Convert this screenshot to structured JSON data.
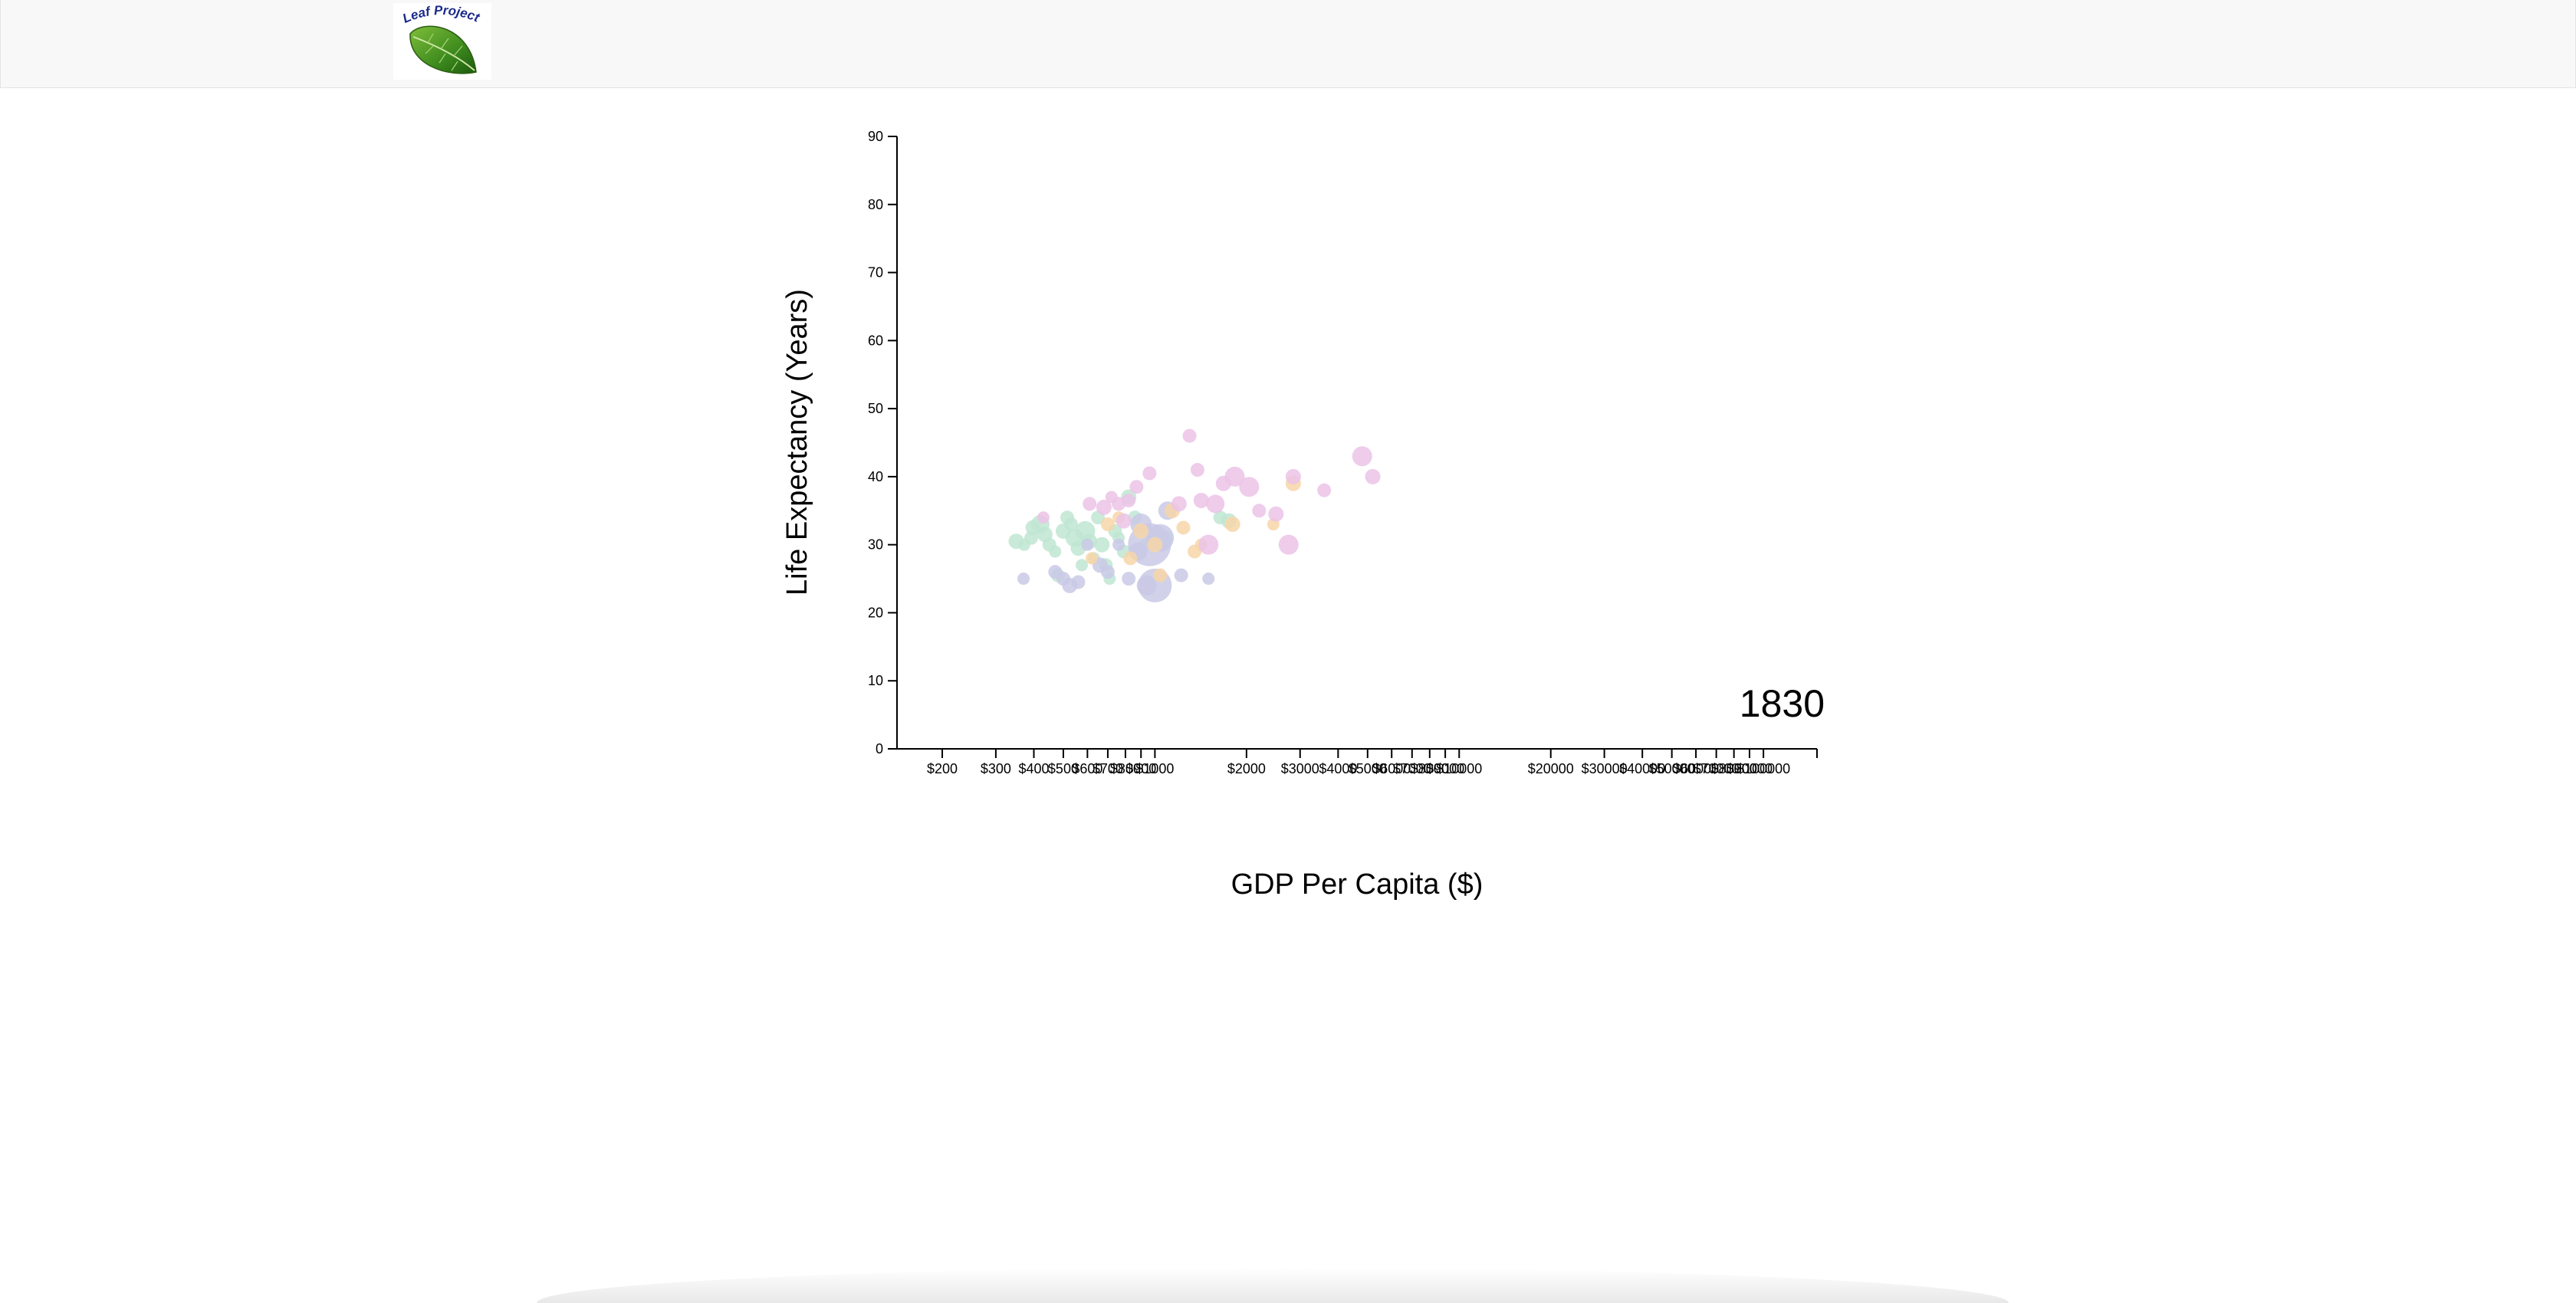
{
  "logo": {
    "text": "Leaf Project"
  },
  "chart_data": {
    "type": "scatter",
    "title": "",
    "year_label": "1830",
    "xlabel": "GDP Per Capita ($)",
    "ylabel": "Life Expectancy (Years)",
    "x_scale": "log",
    "xlim": [
      142,
      150000
    ],
    "ylim": [
      0,
      90
    ],
    "y_ticks": [
      0,
      10,
      20,
      30,
      40,
      50,
      60,
      70,
      80,
      90
    ],
    "x_ticks": [
      200,
      300,
      400,
      500,
      600,
      700,
      800,
      900,
      1000,
      2000,
      3000,
      4000,
      5000,
      6000,
      7000,
      8000,
      9000,
      10000,
      20000,
      30000,
      40000,
      50000,
      60000,
      70000,
      80000,
      90000,
      100000
    ],
    "x_tick_labels": [
      "$200",
      "$300",
      "$400",
      "$500",
      "$600",
      "$700",
      "$800",
      "$900",
      "$1000",
      "$2000",
      "$3000",
      "$4000",
      "$5000",
      "$6000",
      "$7000",
      "$8000",
      "$9000",
      "$10000",
      "$20000",
      "$30000",
      "$40000",
      "$50000",
      "$60000",
      "$70000",
      "$80000",
      "$90000",
      "$100000"
    ],
    "grid": false,
    "colors": {
      "africa": "#bfe6d2",
      "asia": "#c9c9e6",
      "americas": "#f7d6a8",
      "europe": "#ebc3e6",
      "axis": "#000000"
    },
    "series": [
      {
        "color_key": "africa",
        "points": [
          {
            "x": 350,
            "y": 30.5,
            "r": 10
          },
          {
            "x": 372,
            "y": 30,
            "r": 8
          },
          {
            "x": 392,
            "y": 31,
            "r": 9
          },
          {
            "x": 398,
            "y": 32.5,
            "r": 10
          },
          {
            "x": 420,
            "y": 33,
            "r": 12
          },
          {
            "x": 435,
            "y": 31.5,
            "r": 10
          },
          {
            "x": 450,
            "y": 30,
            "r": 9
          },
          {
            "x": 470,
            "y": 29,
            "r": 8
          },
          {
            "x": 480,
            "y": 25.5,
            "r": 9
          },
          {
            "x": 500,
            "y": 32,
            "r": 10
          },
          {
            "x": 515,
            "y": 34,
            "r": 9
          },
          {
            "x": 530,
            "y": 33,
            "r": 9
          },
          {
            "x": 545,
            "y": 31,
            "r": 12
          },
          {
            "x": 560,
            "y": 29.5,
            "r": 10
          },
          {
            "x": 575,
            "y": 27,
            "r": 8
          },
          {
            "x": 590,
            "y": 32,
            "r": 13
          },
          {
            "x": 610,
            "y": 30.5,
            "r": 10
          },
          {
            "x": 630,
            "y": 28,
            "r": 8
          },
          {
            "x": 650,
            "y": 34,
            "r": 9
          },
          {
            "x": 670,
            "y": 30,
            "r": 10
          },
          {
            "x": 690,
            "y": 27,
            "r": 9
          },
          {
            "x": 710,
            "y": 25,
            "r": 8
          },
          {
            "x": 740,
            "y": 32,
            "r": 9
          },
          {
            "x": 760,
            "y": 31,
            "r": 8
          },
          {
            "x": 790,
            "y": 29,
            "r": 9
          },
          {
            "x": 820,
            "y": 37,
            "r": 10
          },
          {
            "x": 860,
            "y": 34,
            "r": 9
          },
          {
            "x": 930,
            "y": 30,
            "r": 8
          },
          {
            "x": 1080,
            "y": 31,
            "r": 10
          },
          {
            "x": 1640,
            "y": 34,
            "r": 9
          },
          {
            "x": 1750,
            "y": 33.5,
            "r": 10
          }
        ]
      },
      {
        "color_key": "asia",
        "points": [
          {
            "x": 370,
            "y": 25,
            "r": 8
          },
          {
            "x": 470,
            "y": 26,
            "r": 9
          },
          {
            "x": 500,
            "y": 25,
            "r": 9
          },
          {
            "x": 525,
            "y": 24,
            "r": 10
          },
          {
            "x": 560,
            "y": 24.5,
            "r": 9
          },
          {
            "x": 600,
            "y": 30,
            "r": 8
          },
          {
            "x": 660,
            "y": 27,
            "r": 10
          },
          {
            "x": 700,
            "y": 26,
            "r": 9
          },
          {
            "x": 760,
            "y": 30,
            "r": 8
          },
          {
            "x": 820,
            "y": 25,
            "r": 9
          },
          {
            "x": 880,
            "y": 29,
            "r": 12
          },
          {
            "x": 900,
            "y": 33,
            "r": 14
          },
          {
            "x": 940,
            "y": 24,
            "r": 13
          },
          {
            "x": 960,
            "y": 30,
            "r": 28
          },
          {
            "x": 1000,
            "y": 24,
            "r": 22
          },
          {
            "x": 1040,
            "y": 31,
            "r": 18
          },
          {
            "x": 1100,
            "y": 35,
            "r": 12
          },
          {
            "x": 1220,
            "y": 25.5,
            "r": 9
          },
          {
            "x": 1500,
            "y": 25,
            "r": 8
          }
        ]
      },
      {
        "color_key": "americas",
        "points": [
          {
            "x": 620,
            "y": 28,
            "r": 8
          },
          {
            "x": 700,
            "y": 33,
            "r": 9
          },
          {
            "x": 760,
            "y": 34,
            "r": 8
          },
          {
            "x": 830,
            "y": 28,
            "r": 9
          },
          {
            "x": 900,
            "y": 32,
            "r": 10
          },
          {
            "x": 1000,
            "y": 30,
            "r": 10
          },
          {
            "x": 1040,
            "y": 25.5,
            "r": 9
          },
          {
            "x": 1140,
            "y": 35,
            "r": 10
          },
          {
            "x": 1240,
            "y": 32.5,
            "r": 9
          },
          {
            "x": 1350,
            "y": 29,
            "r": 9
          },
          {
            "x": 1420,
            "y": 30,
            "r": 8
          },
          {
            "x": 1800,
            "y": 33,
            "r": 10
          },
          {
            "x": 2450,
            "y": 33,
            "r": 8
          },
          {
            "x": 2850,
            "y": 39,
            "r": 10
          }
        ]
      },
      {
        "color_key": "europe",
        "points": [
          {
            "x": 430,
            "y": 34,
            "r": 8
          },
          {
            "x": 610,
            "y": 36,
            "r": 9
          },
          {
            "x": 680,
            "y": 35.5,
            "r": 10
          },
          {
            "x": 720,
            "y": 37,
            "r": 8
          },
          {
            "x": 760,
            "y": 36,
            "r": 9
          },
          {
            "x": 790,
            "y": 33.5,
            "r": 10
          },
          {
            "x": 820,
            "y": 36.5,
            "r": 9
          },
          {
            "x": 870,
            "y": 38.5,
            "r": 9
          },
          {
            "x": 960,
            "y": 40.5,
            "r": 9
          },
          {
            "x": 1200,
            "y": 36,
            "r": 10
          },
          {
            "x": 1300,
            "y": 46,
            "r": 9
          },
          {
            "x": 1380,
            "y": 41,
            "r": 9
          },
          {
            "x": 1420,
            "y": 36.5,
            "r": 10
          },
          {
            "x": 1500,
            "y": 30,
            "r": 13
          },
          {
            "x": 1580,
            "y": 36,
            "r": 12
          },
          {
            "x": 1680,
            "y": 39,
            "r": 10
          },
          {
            "x": 1830,
            "y": 40,
            "r": 13
          },
          {
            "x": 2040,
            "y": 38.5,
            "r": 13
          },
          {
            "x": 2200,
            "y": 35,
            "r": 9
          },
          {
            "x": 2500,
            "y": 34.5,
            "r": 10
          },
          {
            "x": 2750,
            "y": 30,
            "r": 13
          },
          {
            "x": 2850,
            "y": 40,
            "r": 10
          },
          {
            "x": 3600,
            "y": 38,
            "r": 9
          },
          {
            "x": 4800,
            "y": 43,
            "r": 13
          },
          {
            "x": 5200,
            "y": 40,
            "r": 10
          }
        ]
      }
    ]
  }
}
